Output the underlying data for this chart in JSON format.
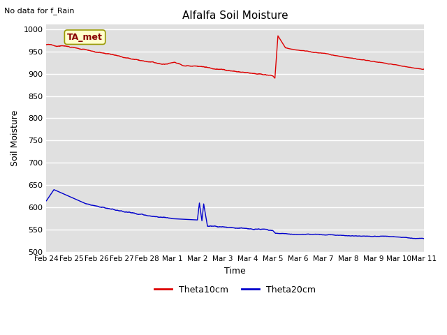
{
  "title": "Alfalfa Soil Moisture",
  "top_left_text": "No data for f_Rain",
  "xlabel": "Time",
  "ylabel": "Soil Moisture",
  "ylim": [
    500,
    1010
  ],
  "yticks": [
    500,
    550,
    600,
    650,
    700,
    750,
    800,
    850,
    900,
    950,
    1000
  ],
  "bg_color": "#e0e0e0",
  "fig_color": "#ffffff",
  "line1_color": "#dd0000",
  "line2_color": "#0000cc",
  "legend_label1": "Theta10cm",
  "legend_label2": "Theta20cm",
  "annotation_box_text": "TA_met",
  "annotation_box_color": "#ffffcc",
  "annotation_box_edge": "#999900",
  "tick_labels": [
    "Feb 24",
    "Feb 25",
    "Feb 26",
    "Feb 27",
    "Feb 28",
    "Mar 1",
    "Mar 2",
    "Mar 3",
    "Mar 4",
    "Mar 5",
    "Mar 6",
    "Mar 7",
    "Mar 8",
    "Mar 9",
    "Mar 10",
    "Mar 11"
  ]
}
